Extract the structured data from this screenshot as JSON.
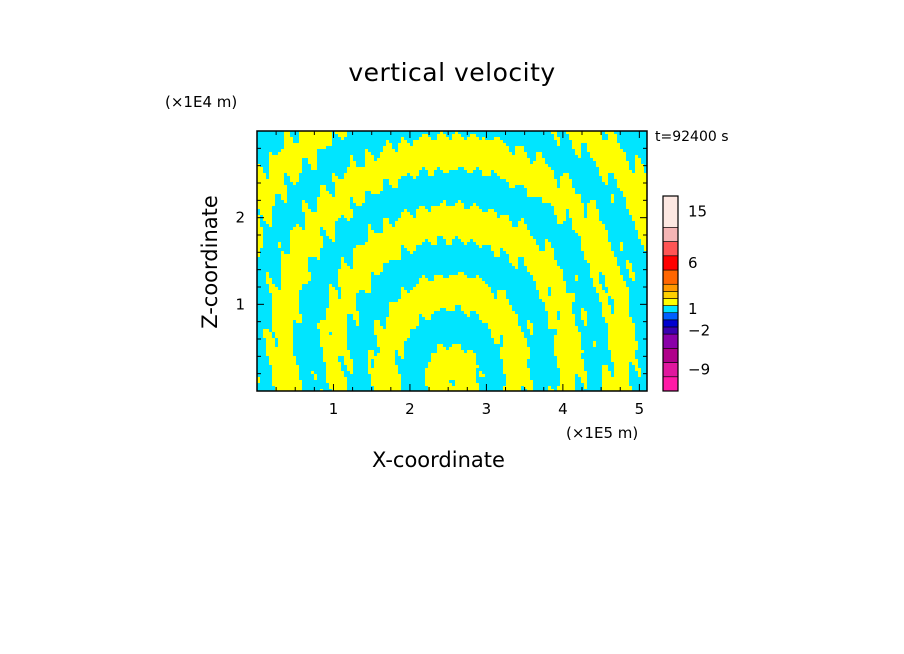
{
  "chart_data": {
    "type": "heatmap",
    "title": "vertical velocity",
    "xlabel": "X-coordinate",
    "ylabel": "Z-coordinate",
    "x_unit": "(×1E5 m)",
    "z_unit": "(×1E4 m)",
    "time_label": "t=92400 s",
    "xlim": [
      0,
      5.1
    ],
    "ylim": [
      0,
      3.0
    ],
    "x_ticks": [
      {
        "value": 1,
        "label": "1"
      },
      {
        "value": 2,
        "label": "2"
      },
      {
        "value": 3,
        "label": "3"
      },
      {
        "value": 4,
        "label": "4"
      },
      {
        "value": 5,
        "label": "5"
      }
    ],
    "y_ticks": [
      {
        "value": 1,
        "label": "1"
      },
      {
        "value": 2,
        "label": "2"
      }
    ],
    "field_colors": {
      "positive": "#ffff00",
      "negative": "#00e5ff"
    },
    "field_description": "alternating positive/negative vertical velocity bands: arched wave fronts centered near x=2.5 tilting outward with height",
    "colorbar": {
      "bins": [
        {
          "color": "#ff1aa6"
        },
        {
          "color": "#e0189e"
        },
        {
          "color": "#b0008a"
        },
        {
          "color": "#8a00a8"
        },
        {
          "color": "#3a00b0"
        },
        {
          "color": "#0000d0"
        },
        {
          "color": "#0060ff"
        },
        {
          "color": "#00e5ff"
        },
        {
          "color": "#ffff00"
        },
        {
          "color": "#ffd000"
        },
        {
          "color": "#ff9900"
        },
        {
          "color": "#ff6600"
        },
        {
          "color": "#ff0000"
        },
        {
          "color": "#ff5555"
        },
        {
          "color": "#f5b5b5"
        },
        {
          "color": "#fde8e2"
        }
      ],
      "labels": [
        {
          "value": -9,
          "label": "−9"
        },
        {
          "value": -2,
          "label": "−2"
        },
        {
          "value": 1,
          "label": "1"
        },
        {
          "value": 6,
          "label": "6"
        },
        {
          "value": 15,
          "label": "15"
        }
      ]
    }
  }
}
